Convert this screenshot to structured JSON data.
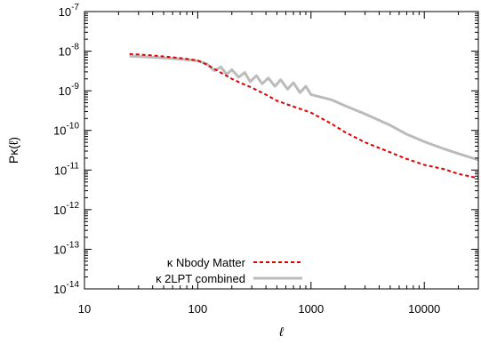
{
  "chart_data": {
    "type": "line",
    "title": "",
    "xlabel": "ℓ",
    "ylabel": "Pκ(ℓ)",
    "xscale": "log",
    "yscale": "log",
    "xlim": [
      10,
      30000
    ],
    "ylim": [
      1e-14,
      1e-07
    ],
    "grid": false,
    "legend_position": "bottom-left",
    "x_ticks": [
      {
        "value": 10,
        "label": "10"
      },
      {
        "value": 100,
        "label": "100"
      },
      {
        "value": 1000,
        "label": "1000"
      },
      {
        "value": 10000,
        "label": "10000"
      }
    ],
    "y_ticks": [
      {
        "value": 1e-14,
        "mantissa": "10",
        "exponent": "-14"
      },
      {
        "value": 1e-13,
        "mantissa": "10",
        "exponent": "-13"
      },
      {
        "value": 1e-12,
        "mantissa": "10",
        "exponent": "-12"
      },
      {
        "value": 1e-11,
        "mantissa": "10",
        "exponent": "-11"
      },
      {
        "value": 1e-10,
        "mantissa": "10",
        "exponent": "-10"
      },
      {
        "value": 1e-09,
        "mantissa": "10",
        "exponent": "-9"
      },
      {
        "value": 1e-08,
        "mantissa": "10",
        "exponent": "-8"
      },
      {
        "value": 1e-07,
        "mantissa": "10",
        "exponent": "-7"
      }
    ],
    "series": [
      {
        "name": "κ Nbody Matter",
        "color": "#e00000",
        "style": "dashed",
        "points": [
          [
            25,
            8.5e-09
          ],
          [
            40,
            7.8e-09
          ],
          [
            60,
            7e-09
          ],
          [
            80,
            6.4e-09
          ],
          [
            100,
            5.8e-09
          ],
          [
            120,
            4.6e-09
          ],
          [
            150,
            3.2e-09
          ],
          [
            200,
            2e-09
          ],
          [
            250,
            1.5e-09
          ],
          [
            300,
            1.2e-09
          ],
          [
            400,
            8e-10
          ],
          [
            500,
            5.6e-10
          ],
          [
            700,
            4e-10
          ],
          [
            1000,
            2.8e-10
          ],
          [
            1500,
            1.5e-10
          ],
          [
            2000,
            9e-11
          ],
          [
            3000,
            5e-11
          ],
          [
            5000,
            2.8e-11
          ],
          [
            7000,
            1.9e-11
          ],
          [
            10000,
            1.35e-11
          ],
          [
            15000,
            1.05e-11
          ],
          [
            20000,
            8e-12
          ],
          [
            30000,
            6.2e-12
          ]
        ]
      },
      {
        "name": "κ 2LPT combined",
        "color": "#bbbbbb",
        "style": "solid",
        "points": [
          [
            25,
            7.5e-09
          ],
          [
            40,
            7e-09
          ],
          [
            60,
            6.5e-09
          ],
          [
            80,
            6.1e-09
          ],
          [
            100,
            5.7e-09
          ],
          [
            120,
            4.8e-09
          ],
          [
            140,
            3.2e-09
          ],
          [
            160,
            4e-09
          ],
          [
            180,
            2.6e-09
          ],
          [
            200,
            3.4e-09
          ],
          [
            230,
            2.2e-09
          ],
          [
            260,
            2.9e-09
          ],
          [
            290,
            1.7e-09
          ],
          [
            330,
            2.4e-09
          ],
          [
            370,
            1.5e-09
          ],
          [
            420,
            2.1e-09
          ],
          [
            480,
            1.3e-09
          ],
          [
            540,
            1.9e-09
          ],
          [
            620,
            1.1e-09
          ],
          [
            700,
            1.6e-09
          ],
          [
            800,
            9e-10
          ],
          [
            900,
            1.3e-09
          ],
          [
            1000,
            8e-10
          ],
          [
            1500,
            6e-10
          ],
          [
            2000,
            4.2e-10
          ],
          [
            3000,
            2.6e-10
          ],
          [
            5000,
            1.35e-10
          ],
          [
            7000,
            8e-11
          ],
          [
            10000,
            5.2e-11
          ],
          [
            15000,
            3.4e-11
          ],
          [
            20000,
            2.6e-11
          ],
          [
            30000,
            1.8e-11
          ]
        ]
      }
    ]
  }
}
